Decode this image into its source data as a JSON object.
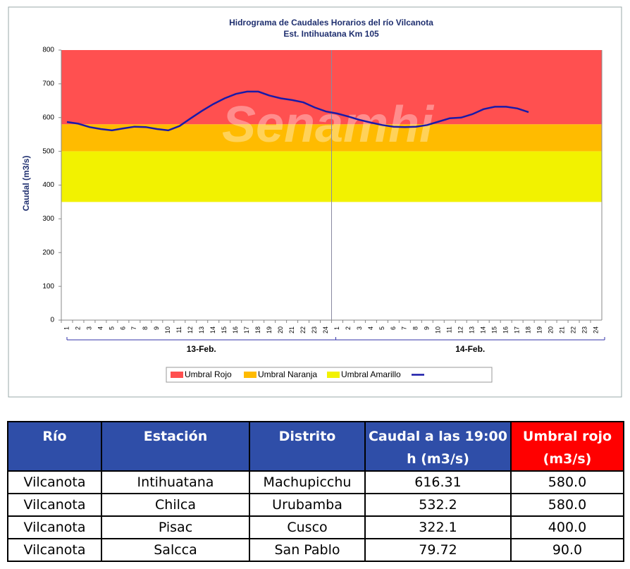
{
  "chart_data": {
    "type": "line",
    "title": "Hidrograma de Caudales Horarios del río Vilcanota",
    "subtitle": "Est. Intihuatana Km 105",
    "watermark": "Senamhi",
    "y_label": "Caudal (m3/s)",
    "categories": [
      "1",
      "2",
      "3",
      "4",
      "5",
      "6",
      "7",
      "8",
      "9",
      "10",
      "11",
      "12",
      "13",
      "14",
      "15",
      "16",
      "17",
      "18",
      "19",
      "20",
      "21",
      "22",
      "23",
      "24",
      "1",
      "2",
      "3",
      "4",
      "5",
      "6",
      "7",
      "8",
      "9",
      "10",
      "11",
      "12",
      "13",
      "14",
      "15",
      "16",
      "17",
      "18",
      "19",
      "20",
      "21",
      "22",
      "23",
      "24"
    ],
    "groups": [
      "13-Feb.",
      "14-Feb."
    ],
    "bands": [
      {
        "name": "Umbral Rojo",
        "color": "#ff5050",
        "range": [
          580,
          800
        ]
      },
      {
        "name": "Umbral Naranja",
        "color": "#ffbb00",
        "range": [
          500,
          580
        ]
      },
      {
        "name": "Umbral Amarillo",
        "color": "#f2f200",
        "range": [
          350,
          500
        ]
      }
    ],
    "series": [
      {
        "name": "Caudal (m3/s)",
        "color": "#1a1aa8",
        "values": [
          587,
          582,
          572,
          566,
          562,
          568,
          573,
          572,
          566,
          562,
          575,
          598,
          620,
          640,
          657,
          670,
          677,
          677,
          665,
          657,
          652,
          645,
          630,
          618,
          612,
          603,
          593,
          585,
          578,
          573,
          572,
          573,
          578,
          588,
          598,
          600,
          610,
          625,
          632,
          632,
          627,
          616,
          null,
          null,
          null,
          null,
          null,
          null
        ]
      }
    ],
    "ylim": [
      0,
      800
    ],
    "yticks": [
      0,
      100,
      200,
      300,
      400,
      500,
      600,
      700,
      800
    ]
  },
  "table": {
    "header": [
      "Río",
      "Estación",
      "Distrito",
      "Caudal a las 19:00 h (m3/s)",
      "Umbral rojo (m3/s)"
    ],
    "rows": [
      [
        "Vilcanota",
        "Intihuatana",
        "Machupicchu",
        "616.31",
        "580.0"
      ],
      [
        "Vilcanota",
        "Chilca",
        "Urubamba",
        "532.2",
        "580.0"
      ],
      [
        "Vilcanota",
        "Pisac",
        "Cusco",
        "322.1",
        "400.0"
      ],
      [
        "Vilcanota",
        "Salcca",
        "San Pablo",
        "79.72",
        "90.0"
      ]
    ]
  }
}
